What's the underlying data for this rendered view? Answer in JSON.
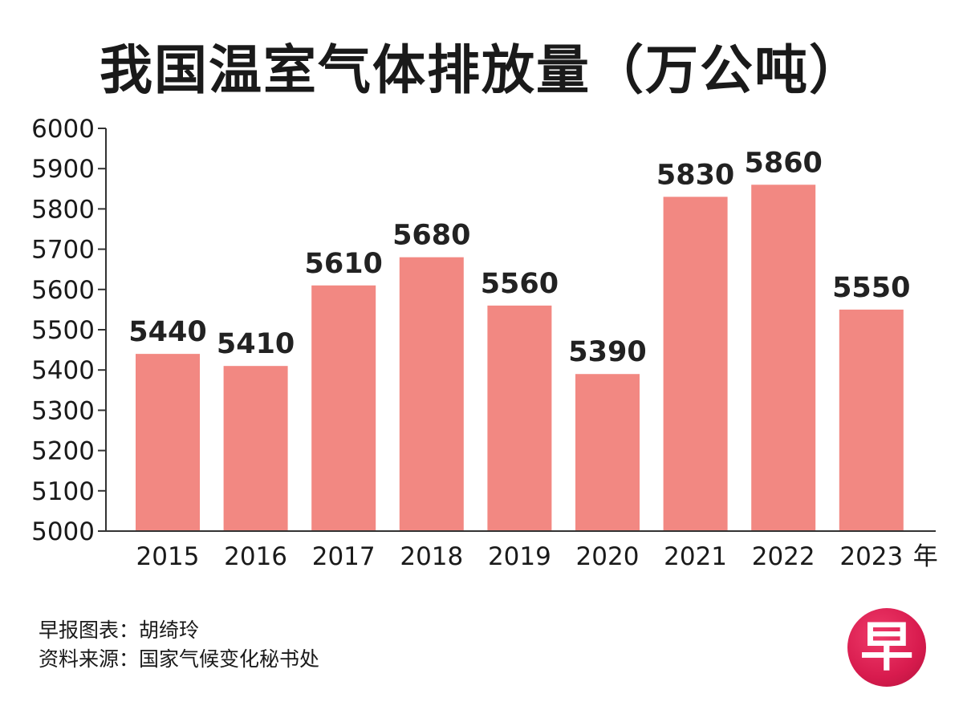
{
  "title": "我国温室气体排放量（万公吨）",
  "chart_data": {
    "type": "bar",
    "title": "我国温室气体排放量（万公吨）",
    "categories": [
      "2015",
      "2016",
      "2017",
      "2018",
      "2019",
      "2020",
      "2021",
      "2022",
      "2023"
    ],
    "values": [
      5440,
      5410,
      5610,
      5680,
      5560,
      5390,
      5830,
      5860,
      5550
    ],
    "data_labels": [
      "5440",
      "5410",
      "5610",
      "5680",
      "5560",
      "5390",
      "5830",
      "5860",
      "5550"
    ],
    "y_ticks": [
      "5000",
      "5100",
      "5200",
      "5300",
      "5400",
      "5500",
      "5600",
      "5700",
      "5800",
      "5900",
      "6000"
    ],
    "ylim": [
      5000,
      6000
    ],
    "xlabel": "年",
    "ylabel": "",
    "bar_color": "#f28882",
    "grid": false
  },
  "credits": {
    "chart_by": "早报图表：胡绮玲",
    "source": "资料来源：国家气候变化秘书处"
  },
  "logo": {
    "glyph": "早",
    "color": "#d81b4e"
  }
}
